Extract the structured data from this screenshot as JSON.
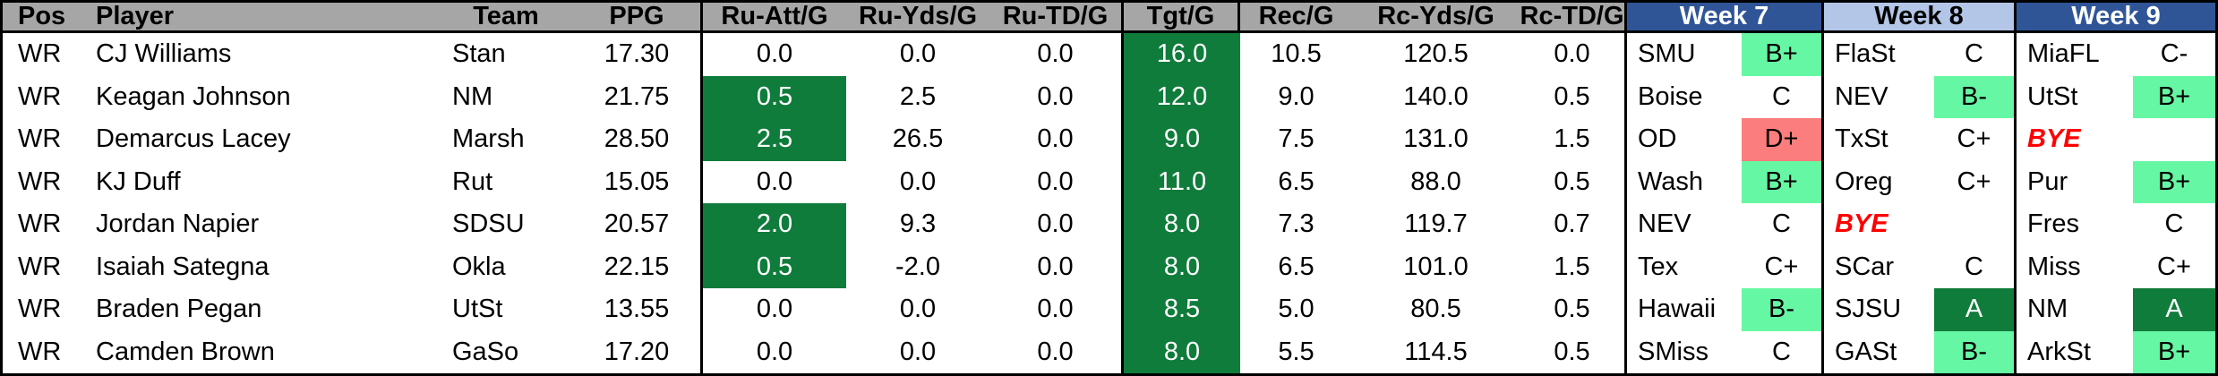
{
  "colors": {
    "header_gray": "#A6A6A6",
    "week_dark_blue": "#2F5597",
    "week_light_blue": "#B4C6E7",
    "dark_green": "#107C3B",
    "light_green": "#66F7A4",
    "red_cell": "#FC7D7D",
    "bye_text": "#FF0000"
  },
  "table": {
    "headers": {
      "pos": "Pos",
      "player": "Player",
      "team": "Team",
      "ppg": "PPG",
      "ru_att": "Ru-Att/G",
      "ru_yds": "Ru-Yds/G",
      "ru_td": "Ru-TD/G",
      "tgt": "Tgt/G",
      "rec": "Rec/G",
      "rc_yds": "Rc-Yds/G",
      "rc_td": "Rc-TD/G",
      "week7": "Week 7",
      "week8": "Week 8",
      "week9": "Week 9"
    },
    "rows": [
      {
        "pos": "WR",
        "player": "CJ Williams",
        "team": "Stan",
        "ppg": "17.30",
        "ru_att": "0.0",
        "ru_att_class": "",
        "ru_yds": "0.0",
        "ru_td": "0.0",
        "tgt": "16.0",
        "rec": "10.5",
        "rc_yds": "120.5",
        "rc_td": "0.0",
        "w7_opp": "SMU",
        "w7_opp_class": "",
        "w7_grade": "B+",
        "w7_grade_class": "g-light",
        "w8_opp": "FlaSt",
        "w8_opp_class": "",
        "w8_grade": "C",
        "w8_grade_class": "",
        "w9_opp": "MiaFL",
        "w9_opp_class": "",
        "w9_grade": "C-",
        "w9_grade_class": ""
      },
      {
        "pos": "WR",
        "player": "Keagan Johnson",
        "team": "NM",
        "ppg": "21.75",
        "ru_att": "0.5",
        "ru_att_class": "hl-green",
        "ru_yds": "2.5",
        "ru_td": "0.0",
        "tgt": "12.0",
        "rec": "9.0",
        "rc_yds": "140.0",
        "rc_td": "0.5",
        "w7_opp": "Boise",
        "w7_opp_class": "",
        "w7_grade": "C",
        "w7_grade_class": "",
        "w8_opp": "NEV",
        "w8_opp_class": "",
        "w8_grade": "B-",
        "w8_grade_class": "g-light",
        "w9_opp": "UtSt",
        "w9_opp_class": "",
        "w9_grade": "B+",
        "w9_grade_class": "g-light"
      },
      {
        "pos": "WR",
        "player": "Demarcus Lacey",
        "team": "Marsh",
        "ppg": "28.50",
        "ru_att": "2.5",
        "ru_att_class": "hl-green",
        "ru_yds": "26.5",
        "ru_td": "0.0",
        "tgt": "9.0",
        "rec": "7.5",
        "rc_yds": "131.0",
        "rc_td": "1.5",
        "w7_opp": "OD",
        "w7_opp_class": "",
        "w7_grade": "D+",
        "w7_grade_class": "g-red",
        "w8_opp": "TxSt",
        "w8_opp_class": "",
        "w8_grade": "C+",
        "w8_grade_class": "",
        "w9_opp": "BYE",
        "w9_opp_class": "bye",
        "w9_grade": "",
        "w9_grade_class": ""
      },
      {
        "pos": "WR",
        "player": "KJ Duff",
        "team": "Rut",
        "ppg": "15.05",
        "ru_att": "0.0",
        "ru_att_class": "",
        "ru_yds": "0.0",
        "ru_td": "0.0",
        "tgt": "11.0",
        "rec": "6.5",
        "rc_yds": "88.0",
        "rc_td": "0.5",
        "w7_opp": "Wash",
        "w7_opp_class": "",
        "w7_grade": "B+",
        "w7_grade_class": "g-light",
        "w8_opp": "Oreg",
        "w8_opp_class": "",
        "w8_grade": "C+",
        "w8_grade_class": "",
        "w9_opp": "Pur",
        "w9_opp_class": "",
        "w9_grade": "B+",
        "w9_grade_class": "g-light"
      },
      {
        "pos": "WR",
        "player": "Jordan Napier",
        "team": "SDSU",
        "ppg": "20.57",
        "ru_att": "2.0",
        "ru_att_class": "hl-green",
        "ru_yds": "9.3",
        "ru_td": "0.0",
        "tgt": "8.0",
        "rec": "7.3",
        "rc_yds": "119.7",
        "rc_td": "0.7",
        "w7_opp": "NEV",
        "w7_opp_class": "",
        "w7_grade": "C",
        "w7_grade_class": "",
        "w8_opp": "BYE",
        "w8_opp_class": "bye",
        "w8_grade": "",
        "w8_grade_class": "",
        "w9_opp": "Fres",
        "w9_opp_class": "",
        "w9_grade": "C",
        "w9_grade_class": ""
      },
      {
        "pos": "WR",
        "player": "Isaiah Sategna",
        "team": "Okla",
        "ppg": "22.15",
        "ru_att": "0.5",
        "ru_att_class": "hl-green",
        "ru_yds": "-2.0",
        "ru_td": "0.0",
        "tgt": "8.0",
        "rec": "6.5",
        "rc_yds": "101.0",
        "rc_td": "1.5",
        "w7_opp": "Tex",
        "w7_opp_class": "",
        "w7_grade": "C+",
        "w7_grade_class": "",
        "w8_opp": "SCar",
        "w8_opp_class": "",
        "w8_grade": "C",
        "w8_grade_class": "",
        "w9_opp": "Miss",
        "w9_opp_class": "",
        "w9_grade": "C+",
        "w9_grade_class": ""
      },
      {
        "pos": "WR",
        "player": "Braden Pegan",
        "team": "UtSt",
        "ppg": "13.55",
        "ru_att": "0.0",
        "ru_att_class": "",
        "ru_yds": "0.0",
        "ru_td": "0.0",
        "tgt": "8.5",
        "rec": "5.0",
        "rc_yds": "80.5",
        "rc_td": "0.5",
        "w7_opp": "Hawaii",
        "w7_opp_class": "",
        "w7_grade": "B-",
        "w7_grade_class": "g-light",
        "w8_opp": "SJSU",
        "w8_opp_class": "",
        "w8_grade": "A",
        "w8_grade_class": "g-dark",
        "w9_opp": "NM",
        "w9_opp_class": "",
        "w9_grade": "A",
        "w9_grade_class": "g-dark"
      },
      {
        "pos": "WR",
        "player": "Camden Brown",
        "team": "GaSo",
        "ppg": "17.20",
        "ru_att": "0.0",
        "ru_att_class": "",
        "ru_yds": "0.0",
        "ru_td": "0.0",
        "tgt": "8.0",
        "rec": "5.5",
        "rc_yds": "114.5",
        "rc_td": "0.5",
        "w7_opp": "SMiss",
        "w7_opp_class": "",
        "w7_grade": "C",
        "w7_grade_class": "",
        "w8_opp": "GASt",
        "w8_opp_class": "",
        "w8_grade": "B-",
        "w8_grade_class": "g-light",
        "w9_opp": "ArkSt",
        "w9_opp_class": "",
        "w9_grade": "B+",
        "w9_grade_class": "g-light"
      }
    ]
  }
}
